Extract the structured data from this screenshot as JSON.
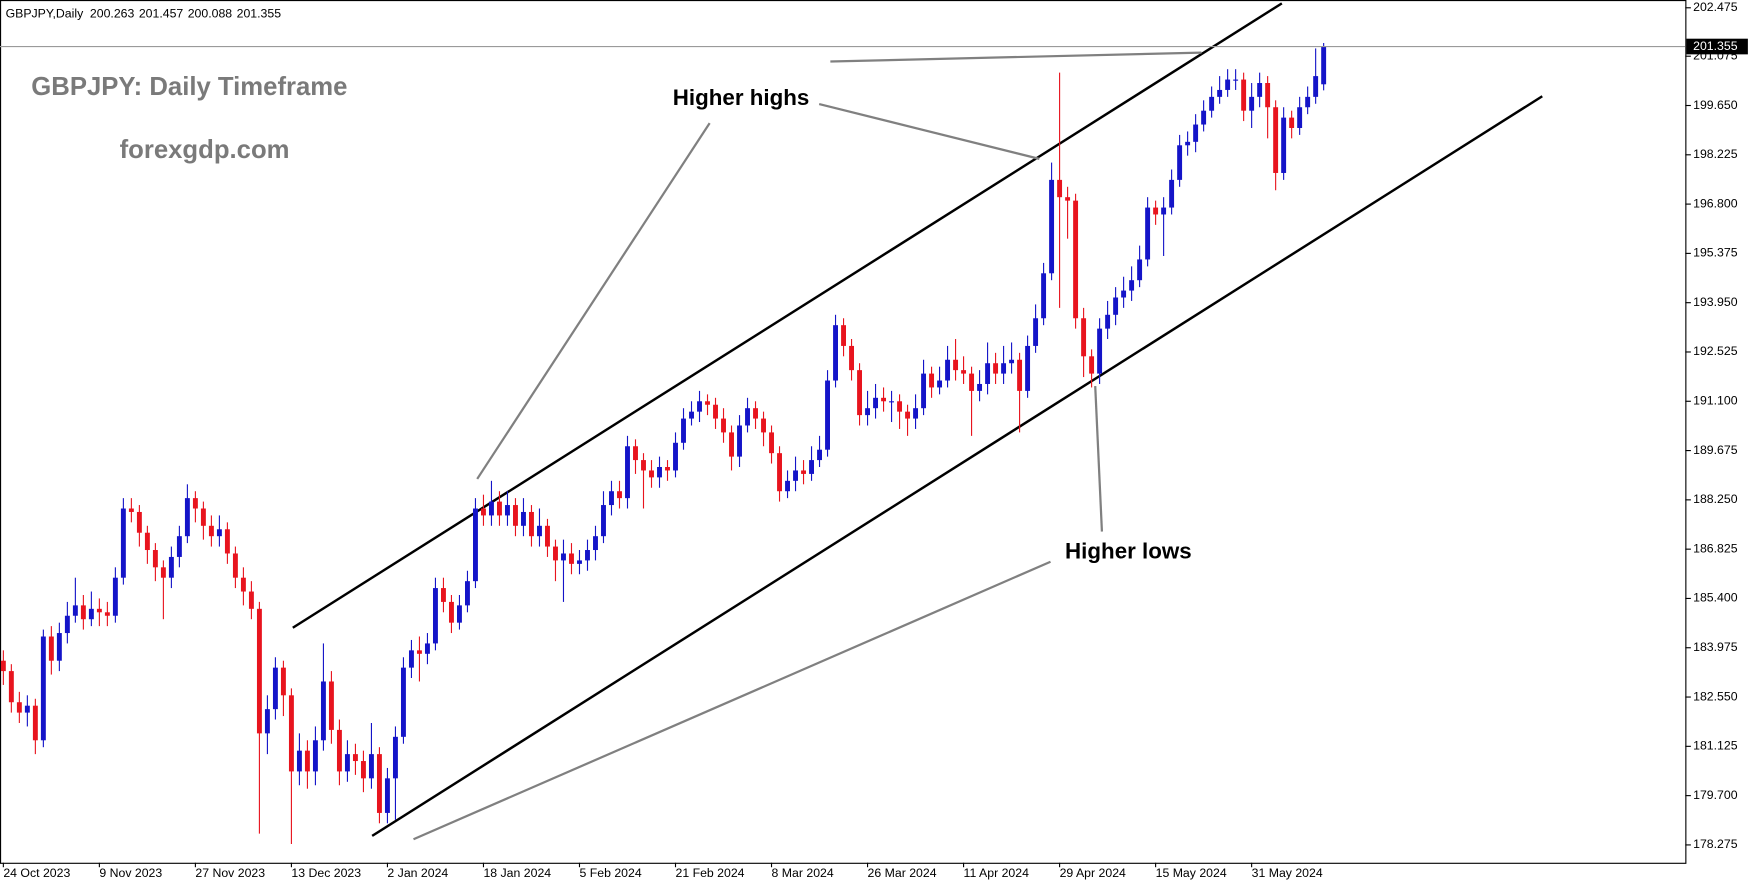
{
  "chart_data": {
    "type": "candlestick",
    "symbol": "GBPJPY,Daily",
    "title": "GBPJPY: Daily Timeframe",
    "subtitle": "forexgdp.com",
    "annotations": [
      "Higher highs",
      "Higher lows"
    ],
    "up_color": "#1414c8",
    "down_color": "#e8141e",
    "grid": false,
    "ylim": [
      177.76,
      202.7
    ],
    "yticks": [
      178.275,
      {
        "value": 179.7,
        "label": "179.700"
      },
      181.125,
      {
        "value": 182.55,
        "label": "182.550"
      },
      183.975,
      {
        "value": 185.4,
        "label": "185.400"
      },
      186.825,
      {
        "value": 188.25,
        "label": "188.250"
      },
      189.675,
      {
        "value": 191.1,
        "label": "191.100"
      },
      192.525,
      {
        "value": 193.95,
        "label": "193.950"
      },
      195.375,
      {
        "value": 196.8,
        "label": "196.800"
      },
      198.225,
      {
        "value": 199.65,
        "label": "199.650"
      },
      201.075,
      202.475
    ],
    "categories": [
      "24 Oct 2023",
      null,
      null,
      null,
      null,
      null,
      null,
      null,
      null,
      null,
      null,
      null,
      "9 Nov 2023",
      null,
      null,
      null,
      null,
      null,
      null,
      null,
      null,
      null,
      null,
      null,
      "27 Nov 2023",
      null,
      null,
      null,
      null,
      null,
      null,
      null,
      null,
      null,
      null,
      null,
      "13 Dec 2023",
      null,
      null,
      null,
      null,
      null,
      null,
      null,
      null,
      null,
      null,
      null,
      "2 Jan 2024",
      null,
      null,
      null,
      null,
      null,
      null,
      null,
      null,
      null,
      null,
      null,
      "18 Jan 2024",
      null,
      null,
      null,
      null,
      null,
      null,
      null,
      null,
      null,
      null,
      null,
      "5 Feb 2024",
      null,
      null,
      null,
      null,
      null,
      null,
      null,
      null,
      null,
      null,
      null,
      "21 Feb 2024",
      null,
      null,
      null,
      null,
      null,
      null,
      null,
      null,
      null,
      null,
      null,
      "8 Mar 2024",
      null,
      null,
      null,
      null,
      null,
      null,
      null,
      null,
      null,
      null,
      null,
      "26 Mar 2024",
      null,
      null,
      null,
      null,
      null,
      null,
      null,
      null,
      null,
      null,
      null,
      "11 Apr 2024",
      null,
      null,
      null,
      null,
      null,
      null,
      null,
      null,
      null,
      null,
      null,
      "29 Apr 2024",
      null,
      null,
      null,
      null,
      null,
      null,
      null,
      null,
      null,
      null,
      null,
      "15 May 2024",
      null,
      null,
      null,
      null,
      null,
      null,
      null,
      null,
      null,
      null,
      null,
      "31 May 2024",
      null,
      null,
      null,
      null,
      null,
      null,
      null,
      null,
      null
    ],
    "open": [
      183.6,
      183.3,
      182.4,
      182.1,
      182.3,
      181.3,
      184.3,
      183.6,
      184.4,
      184.9,
      185.2,
      184.8,
      185.1,
      185.0,
      184.9,
      186.0,
      188.0,
      187.9,
      187.3,
      186.8,
      186.3,
      186.0,
      186.6,
      187.2,
      188.3,
      188.0,
      187.5,
      187.2,
      187.4,
      186.7,
      186.0,
      185.6,
      185.1,
      181.5,
      182.2,
      183.4,
      182.6,
      180.4,
      181.0,
      180.4,
      181.3,
      183.0,
      181.6,
      180.4,
      180.9,
      180.7,
      180.2,
      180.9,
      179.2,
      180.2,
      181.4,
      183.4,
      183.9,
      183.8,
      184.1,
      185.7,
      185.3,
      184.7,
      185.2,
      185.9,
      188.0,
      187.8,
      188.2,
      187.8,
      188.1,
      187.5,
      187.9,
      187.2,
      187.5,
      186.9,
      186.5,
      186.7,
      186.4,
      186.5,
      186.8,
      187.2,
      188.1,
      188.5,
      188.3,
      189.8,
      189.4,
      189.1,
      188.9,
      189.2,
      189.1,
      189.9,
      190.6,
      190.8,
      191.1,
      191.0,
      190.6,
      190.2,
      189.5,
      190.4,
      190.9,
      190.6,
      190.2,
      189.6,
      188.5,
      188.8,
      189.1,
      189.0,
      189.4,
      189.7,
      191.7,
      193.3,
      192.7,
      192.0,
      190.7,
      190.9,
      191.2,
      191.1,
      191.1,
      190.8,
      190.6,
      190.9,
      191.9,
      191.5,
      191.7,
      192.3,
      192.0,
      191.9,
      191.4,
      191.6,
      192.2,
      191.9,
      192.2,
      192.3,
      191.4,
      192.7,
      193.5,
      194.8,
      197.5,
      197.0,
      196.9,
      193.5,
      192.4,
      191.9,
      193.2,
      193.6,
      194.1,
      194.3,
      194.6,
      195.2,
      196.7,
      196.5,
      196.7,
      197.5,
      198.5,
      198.6,
      199.1,
      199.5,
      199.9,
      200.1,
      200.4,
      200.4,
      199.5,
      199.9,
      200.3,
      199.6,
      197.7,
      199.3,
      199.0,
      199.6,
      199.9,
      200.263
    ],
    "high": [
      183.9,
      183.5,
      182.7,
      182.6,
      182.5,
      184.5,
      184.6,
      184.7,
      185.3,
      186.0,
      185.5,
      185.6,
      185.4,
      185.3,
      186.3,
      188.3,
      188.3,
      188.1,
      187.5,
      187.0,
      186.5,
      186.9,
      187.5,
      188.7,
      188.5,
      188.2,
      187.8,
      187.8,
      187.6,
      186.9,
      186.3,
      185.9,
      185.3,
      182.6,
      183.7,
      183.6,
      182.8,
      181.5,
      181.3,
      181.7,
      184.1,
      183.3,
      181.9,
      181.3,
      181.2,
      181.0,
      181.8,
      181.1,
      180.5,
      181.7,
      183.7,
      184.2,
      184.3,
      184.4,
      186.0,
      186.0,
      185.5,
      185.5,
      186.2,
      188.3,
      188.4,
      188.8,
      188.5,
      188.5,
      188.3,
      188.3,
      188.1,
      188.0,
      187.7,
      187.1,
      187.1,
      187.0,
      186.8,
      187.1,
      187.5,
      188.5,
      188.8,
      188.8,
      190.1,
      190.0,
      189.6,
      189.4,
      189.5,
      189.4,
      190.2,
      190.9,
      191.1,
      191.4,
      191.3,
      191.2,
      190.9,
      190.4,
      190.7,
      191.2,
      191.1,
      190.8,
      190.4,
      189.8,
      189.1,
      189.5,
      189.4,
      189.8,
      190.1,
      192.0,
      193.6,
      193.5,
      192.9,
      192.2,
      191.4,
      191.6,
      191.5,
      191.4,
      191.3,
      191.0,
      191.3,
      192.3,
      192.1,
      192.1,
      192.7,
      192.9,
      192.4,
      192.1,
      192.0,
      192.8,
      192.5,
      192.7,
      192.8,
      192.5,
      193.0,
      193.9,
      195.1,
      198.0,
      200.6,
      197.3,
      197.1,
      193.8,
      192.6,
      193.5,
      194.0,
      194.4,
      194.7,
      195.0,
      195.6,
      197.0,
      196.9,
      197.0,
      197.8,
      198.8,
      198.9,
      199.4,
      199.8,
      200.2,
      200.5,
      200.7,
      200.7,
      200.6,
      200.3,
      200.6,
      200.5,
      199.8,
      199.6,
      199.5,
      199.9,
      200.2,
      201.3,
      201.457
    ],
    "low": [
      182.9,
      182.1,
      181.8,
      181.7,
      180.9,
      181.1,
      183.2,
      183.3,
      184.1,
      184.7,
      184.5,
      184.6,
      184.6,
      184.6,
      184.7,
      185.8,
      187.6,
      186.9,
      186.4,
      185.9,
      184.8,
      185.7,
      186.3,
      187.0,
      187.6,
      187.1,
      186.9,
      186.9,
      186.4,
      185.7,
      185.2,
      184.8,
      178.6,
      180.9,
      181.9,
      182.0,
      178.3,
      180.0,
      179.9,
      180.0,
      181.0,
      181.2,
      180.0,
      180.1,
      180.3,
      179.8,
      179.9,
      178.9,
      178.9,
      179.0,
      181.2,
      183.1,
      183.0,
      183.5,
      183.9,
      185.0,
      184.4,
      184.5,
      185.0,
      185.7,
      187.5,
      187.5,
      187.5,
      187.5,
      187.2,
      187.2,
      186.9,
      186.9,
      186.6,
      185.9,
      185.3,
      186.1,
      186.1,
      186.2,
      186.5,
      187.0,
      187.8,
      188.0,
      188.0,
      189.0,
      188.0,
      188.6,
      188.6,
      188.8,
      188.9,
      189.7,
      190.4,
      190.5,
      190.7,
      190.3,
      189.9,
      189.1,
      189.2,
      190.2,
      190.3,
      189.8,
      189.3,
      188.2,
      188.3,
      188.5,
      188.7,
      188.8,
      189.2,
      189.5,
      191.5,
      192.4,
      191.7,
      190.4,
      190.4,
      190.6,
      190.8,
      190.5,
      190.3,
      190.1,
      190.3,
      190.7,
      191.2,
      191.3,
      191.5,
      191.7,
      191.6,
      190.1,
      191.1,
      191.3,
      191.6,
      191.6,
      191.9,
      190.2,
      191.2,
      192.5,
      193.3,
      194.6,
      193.8,
      195.8,
      193.2,
      191.8,
      191.5,
      191.6,
      192.9,
      193.3,
      193.8,
      194.0,
      194.4,
      195.0,
      196.2,
      195.3,
      196.5,
      197.3,
      198.2,
      198.3,
      198.9,
      199.3,
      199.7,
      199.9,
      200.1,
      199.2,
      199.0,
      199.6,
      198.7,
      197.2,
      197.5,
      198.7,
      198.8,
      199.4,
      199.7,
      200.088
    ],
    "close": [
      183.3,
      182.4,
      182.1,
      182.3,
      181.3,
      184.3,
      183.6,
      184.4,
      184.9,
      185.2,
      184.8,
      185.1,
      185.0,
      184.9,
      186.0,
      188.0,
      187.9,
      187.3,
      186.8,
      186.3,
      186.0,
      186.6,
      187.2,
      188.3,
      188.0,
      187.5,
      187.2,
      187.4,
      186.7,
      186.0,
      185.6,
      185.1,
      181.5,
      182.2,
      183.4,
      182.6,
      180.4,
      181.0,
      180.4,
      181.3,
      183.0,
      181.6,
      180.4,
      180.9,
      180.7,
      180.2,
      180.9,
      179.2,
      180.2,
      181.4,
      183.4,
      183.9,
      183.8,
      184.1,
      185.7,
      185.3,
      184.7,
      185.2,
      185.9,
      188.0,
      187.8,
      188.2,
      187.8,
      188.1,
      187.5,
      187.9,
      187.2,
      187.5,
      186.9,
      186.5,
      186.7,
      186.4,
      186.5,
      186.8,
      187.2,
      188.1,
      188.5,
      188.3,
      189.8,
      189.4,
      189.1,
      188.9,
      189.2,
      189.1,
      189.9,
      190.6,
      190.8,
      191.1,
      191.0,
      190.6,
      190.2,
      189.5,
      190.4,
      190.9,
      190.6,
      190.2,
      189.6,
      188.5,
      188.8,
      189.1,
      189.0,
      189.4,
      189.7,
      191.7,
      193.3,
      192.7,
      192.0,
      190.7,
      190.9,
      191.2,
      191.1,
      191.1,
      190.8,
      190.6,
      190.9,
      191.9,
      191.5,
      191.7,
      192.3,
      192.0,
      191.9,
      191.4,
      191.6,
      192.2,
      191.9,
      192.2,
      192.3,
      191.4,
      192.7,
      193.5,
      194.8,
      197.5,
      197.0,
      196.9,
      193.5,
      192.4,
      191.9,
      193.2,
      193.6,
      194.1,
      194.3,
      194.6,
      195.2,
      196.7,
      196.5,
      196.7,
      197.5,
      198.5,
      198.6,
      199.1,
      199.5,
      199.9,
      200.1,
      200.4,
      200.4,
      199.5,
      199.9,
      200.3,
      199.6,
      197.7,
      199.3,
      199.0,
      199.6,
      199.9,
      200.5,
      201.355
    ]
  }
}
